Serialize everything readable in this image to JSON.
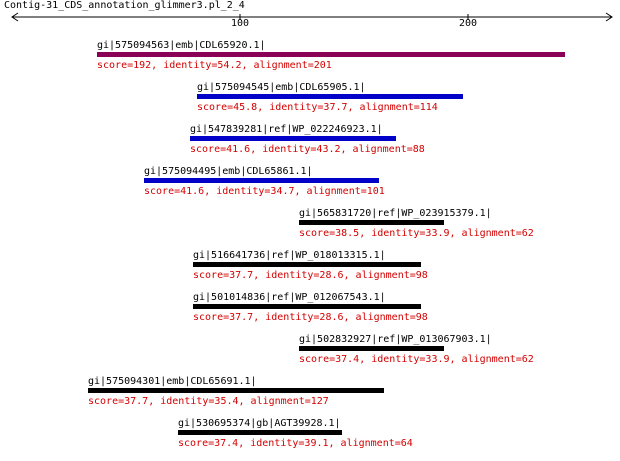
{
  "title": "Contig-31_CDS_annotation_glimmer3.pl_2_4",
  "axis": {
    "ticks": [
      {
        "value": 100,
        "label": "100"
      },
      {
        "value": 200,
        "label": "200"
      }
    ]
  },
  "colors": {
    "purple": "#8b0057",
    "blue": "#0000c8",
    "black": "#000000",
    "stats": "#d40000"
  },
  "hits": [
    {
      "id": "gi|575094563|emb|CDL65920.1|",
      "stats": "score=192, identity=54.2, alignment=201",
      "color": "purple"
    },
    {
      "id": "gi|575094545|emb|CDL65905.1|",
      "stats": "score=45.8, identity=37.7, alignment=114",
      "color": "blue"
    },
    {
      "id": "gi|547839281|ref|WP_022246923.1|",
      "stats": "score=41.6, identity=43.2, alignment=88",
      "color": "blue"
    },
    {
      "id": "gi|575094495|emb|CDL65861.1|",
      "stats": "score=41.6, identity=34.7, alignment=101",
      "color": "blue"
    },
    {
      "id": "gi|565831720|ref|WP_023915379.1|",
      "stats": "score=38.5, identity=33.9, alignment=62",
      "color": "black"
    },
    {
      "id": "gi|516641736|ref|WP_018013315.1|",
      "stats": "score=37.7, identity=28.6, alignment=98",
      "color": "black"
    },
    {
      "id": "gi|501014836|ref|WP_012067543.1|",
      "stats": "score=37.7, identity=28.6, alignment=98",
      "color": "black"
    },
    {
      "id": "gi|502832927|ref|WP_013067903.1|",
      "stats": "score=37.4, identity=33.9, alignment=62",
      "color": "black"
    },
    {
      "id": "gi|575094301|emb|CDL65691.1|",
      "stats": "score=37.7, identity=35.4, alignment=127",
      "color": "black"
    },
    {
      "id": "gi|530695374|gb|AGT39928.1|",
      "stats": "score=37.4, identity=39.1, alignment=64",
      "color": "black"
    }
  ]
}
